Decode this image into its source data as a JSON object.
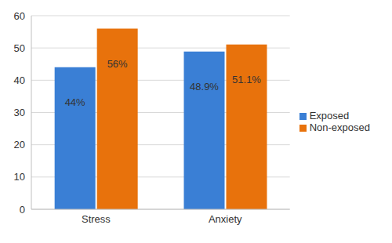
{
  "chart_data": {
    "type": "bar",
    "categories": [
      "Stress",
      "Anxiety"
    ],
    "series": [
      {
        "name": "Exposed",
        "color": "#3a7fd5",
        "values": [
          44,
          48.9
        ],
        "value_labels": [
          "44%",
          "48.9%"
        ]
      },
      {
        "name": "Non-exposed",
        "color": "#e8720c",
        "values": [
          56,
          51.1
        ],
        "value_labels": [
          "56%",
          "51.1%"
        ]
      }
    ],
    "ylim": [
      0,
      60
    ],
    "yticks": [
      0,
      10,
      20,
      30,
      40,
      50,
      60
    ],
    "grid": true,
    "legend": "right",
    "data_labels": true
  }
}
